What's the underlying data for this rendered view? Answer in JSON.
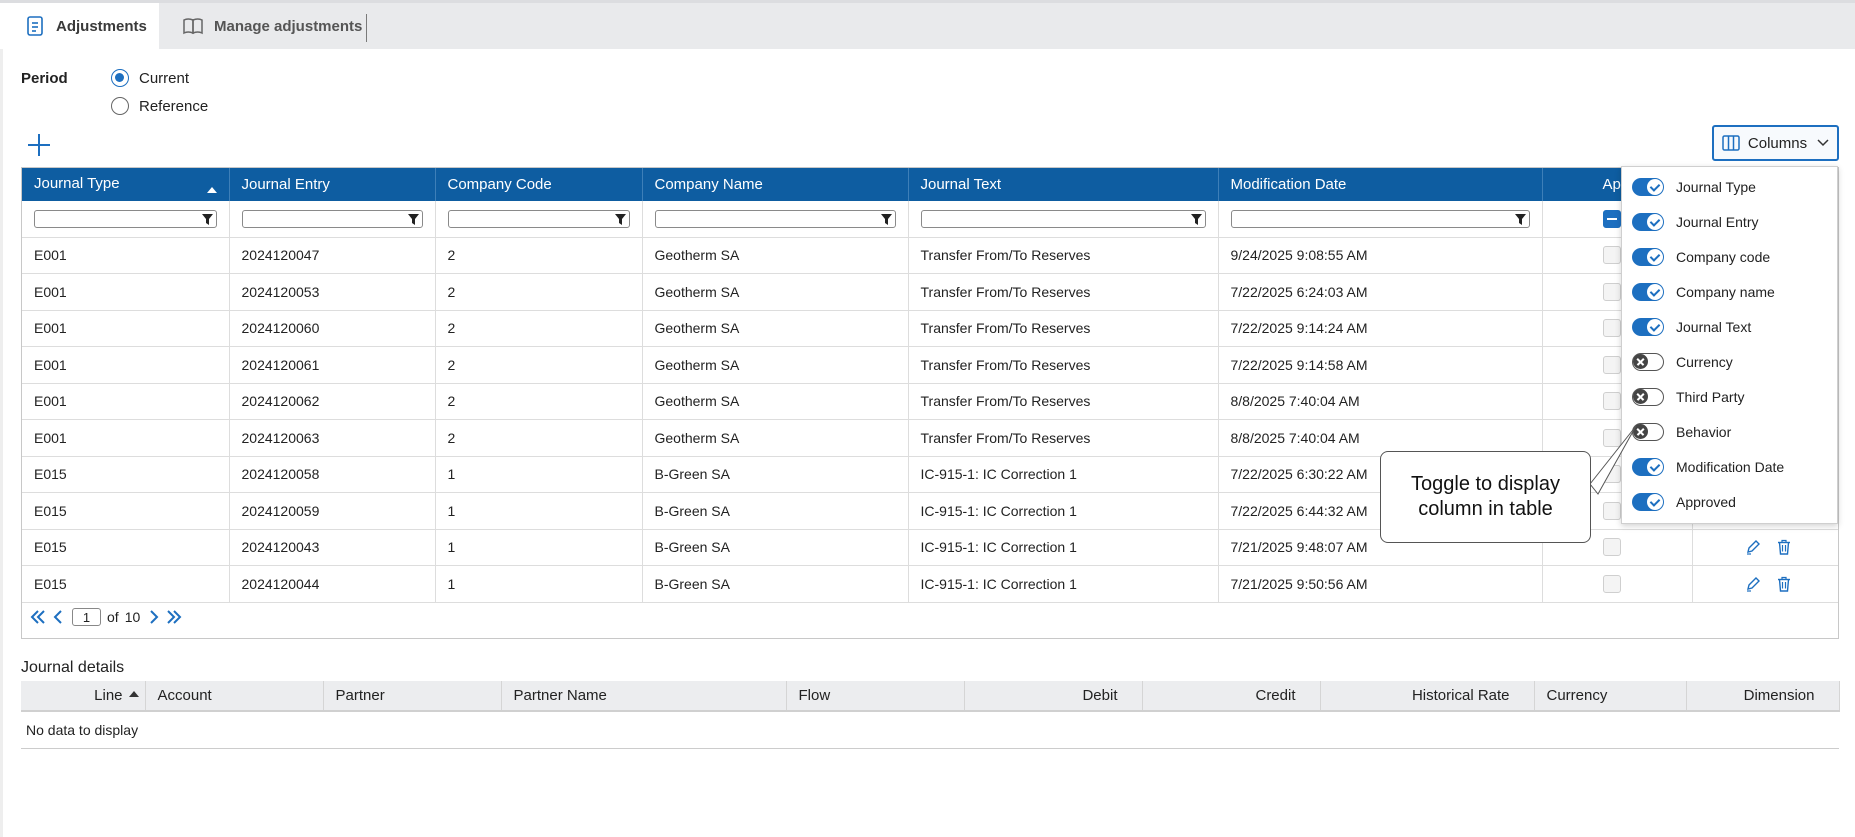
{
  "tabs": [
    {
      "label": "Adjustments",
      "icon": "document-icon",
      "active": true
    },
    {
      "label": "Manage adjustments",
      "icon": "book-icon",
      "active": false
    }
  ],
  "period": {
    "label": "Period",
    "options": [
      {
        "label": "Current",
        "selected": true
      },
      {
        "label": "Reference",
        "selected": false
      }
    ]
  },
  "toolbar": {
    "add_icon": "plus-icon",
    "columns_label": "Columns"
  },
  "grid": {
    "columns": [
      "Journal Type",
      "Journal Entry",
      "Company Code",
      "Company Name",
      "Journal Text",
      "Modification Date",
      "Appro"
    ],
    "rows": [
      {
        "type": "E001",
        "entry": "2024120047",
        "code": "2",
        "name": "Geotherm SA",
        "text": "Transfer From/To Reserves",
        "date": "9/24/2025 9:08:55 AM"
      },
      {
        "type": "E001",
        "entry": "2024120053",
        "code": "2",
        "name": "Geotherm SA",
        "text": "Transfer From/To Reserves",
        "date": "7/22/2025 6:24:03 AM"
      },
      {
        "type": "E001",
        "entry": "2024120060",
        "code": "2",
        "name": "Geotherm SA",
        "text": "Transfer From/To Reserves",
        "date": "7/22/2025 9:14:24 AM"
      },
      {
        "type": "E001",
        "entry": "2024120061",
        "code": "2",
        "name": "Geotherm SA",
        "text": "Transfer From/To Reserves",
        "date": "7/22/2025 9:14:58 AM"
      },
      {
        "type": "E001",
        "entry": "2024120062",
        "code": "2",
        "name": "Geotherm SA",
        "text": "Transfer From/To Reserves",
        "date": "8/8/2025 7:40:04 AM"
      },
      {
        "type": "E001",
        "entry": "2024120063",
        "code": "2",
        "name": "Geotherm SA",
        "text": "Transfer From/To Reserves",
        "date": "8/8/2025 7:40:04 AM"
      },
      {
        "type": "E015",
        "entry": "2024120058",
        "code": "1",
        "name": "B-Green SA",
        "text": "IC-915-1: IC Correction 1",
        "date": "7/22/2025 6:30:22 AM"
      },
      {
        "type": "E015",
        "entry": "2024120059",
        "code": "1",
        "name": "B-Green SA",
        "text": "IC-915-1: IC Correction 1",
        "date": "7/22/2025 6:44:32 AM"
      },
      {
        "type": "E015",
        "entry": "2024120043",
        "code": "1",
        "name": "B-Green SA",
        "text": "IC-915-1: IC Correction 1",
        "date": "7/21/2025 9:48:07 AM"
      },
      {
        "type": "E015",
        "entry": "2024120044",
        "code": "1",
        "name": "B-Green SA",
        "text": "IC-915-1: IC Correction 1",
        "date": "7/21/2025 9:50:56 AM"
      }
    ]
  },
  "pager": {
    "page": "1",
    "of_label": "of",
    "total": "10"
  },
  "journal_details": {
    "title": "Journal details",
    "columns": [
      "Line",
      "Account",
      "Partner",
      "Partner Name",
      "Flow",
      "Debit",
      "Credit",
      "Historical Rate",
      "Currency",
      "Dimension"
    ],
    "empty_text": "No data to display"
  },
  "columns_menu": {
    "items": [
      {
        "label": "Journal Type",
        "on": true
      },
      {
        "label": "Journal Entry",
        "on": true
      },
      {
        "label": "Company code",
        "on": true
      },
      {
        "label": "Company name",
        "on": true
      },
      {
        "label": "Journal Text",
        "on": true
      },
      {
        "label": "Currency",
        "on": false
      },
      {
        "label": "Third Party",
        "on": false
      },
      {
        "label": "Behavior",
        "on": false
      },
      {
        "label": "Modification Date",
        "on": true
      },
      {
        "label": "Approved",
        "on": true
      }
    ]
  },
  "callout": {
    "text": "Toggle to display column in table"
  },
  "colors": {
    "header_blue": "#0e5da1",
    "accent": "#1d6fc0"
  }
}
